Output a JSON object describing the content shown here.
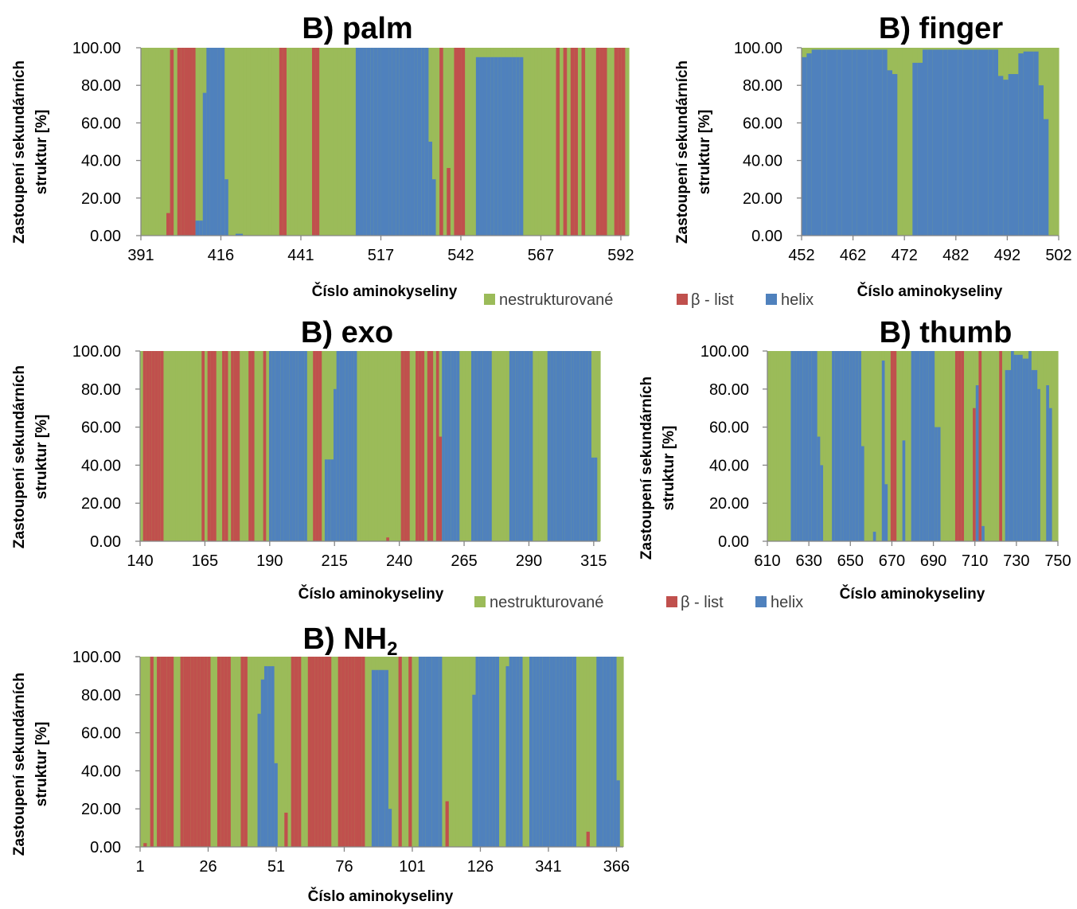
{
  "colors": {
    "nestrukturovane": "#9BBB59",
    "beta_list": "#C0504D",
    "helix": "#4F81BD",
    "axis": "#868686",
    "text": "#000000"
  },
  "common": {
    "xlabel": "Číslo aminokyseliny",
    "ylabel_line1": "Zastoupení sekundárních",
    "ylabel_line2": "struktur [%]",
    "y_ticks": [
      "0.00",
      "20.00",
      "40.00",
      "60.00",
      "80.00",
      "100.00"
    ],
    "legend": [
      "nestrukturované",
      "β - list",
      "helix"
    ]
  },
  "chart_data": [
    {
      "id": "palm",
      "type": "stacked-bar",
      "title": "B) palm",
      "ylim": [
        0,
        100
      ],
      "x_ticks": [
        "391",
        "416",
        "441",
        "517",
        "542",
        "567",
        "592"
      ],
      "series": [
        {
          "name": "nestrukturované",
          "color": "#9BBB59"
        },
        {
          "name": "β - list",
          "color": "#C0504D"
        },
        {
          "name": "helix",
          "color": "#4F81BD"
        }
      ],
      "segments": [
        {
          "n": 7,
          "s": "coil"
        },
        {
          "n": 1,
          "s": "sheet",
          "v": 12
        },
        {
          "n": 1,
          "s": "sheet",
          "v": 99
        },
        {
          "n": 1,
          "s": "coil"
        },
        {
          "n": 5,
          "s": "sheet"
        },
        {
          "n": 2,
          "s": "helix",
          "v": 8
        },
        {
          "n": 1,
          "s": "helix",
          "v": 76
        },
        {
          "n": 5,
          "s": "helix"
        },
        {
          "n": 1,
          "s": "helix",
          "v": 30
        },
        {
          "n": 2,
          "s": "coil"
        },
        {
          "n": 2,
          "s": "helix",
          "v": 1
        },
        {
          "n": 10,
          "s": "coil"
        },
        {
          "n": 2,
          "s": "sheet"
        },
        {
          "n": 7,
          "s": "coil"
        },
        {
          "n": 2,
          "s": "sheet"
        },
        {
          "n": 10,
          "s": "coil"
        },
        {
          "n": 20,
          "s": "helix"
        },
        {
          "n": 1,
          "s": "helix",
          "v": 50
        },
        {
          "n": 1,
          "s": "helix",
          "v": 30
        },
        {
          "n": 1,
          "s": "coil"
        },
        {
          "n": 1,
          "s": "sheet"
        },
        {
          "n": 1,
          "s": "coil"
        },
        {
          "n": 1,
          "s": "sheet",
          "v": 36
        },
        {
          "n": 1,
          "s": "coil"
        },
        {
          "n": 3,
          "s": "sheet"
        },
        {
          "n": 3,
          "s": "coil"
        },
        {
          "n": 13,
          "s": "helix",
          "v": 95
        },
        {
          "n": 9,
          "s": "coil"
        },
        {
          "n": 1,
          "s": "sheet"
        },
        {
          "n": 1,
          "s": "coil"
        },
        {
          "n": 1,
          "s": "sheet"
        },
        {
          "n": 1,
          "s": "coil"
        },
        {
          "n": 2,
          "s": "sheet"
        },
        {
          "n": 1,
          "s": "coil"
        },
        {
          "n": 1,
          "s": "sheet"
        },
        {
          "n": 3,
          "s": "coil"
        },
        {
          "n": 3,
          "s": "sheet"
        },
        {
          "n": 2,
          "s": "coil"
        },
        {
          "n": 3,
          "s": "sheet"
        },
        {
          "n": 1,
          "s": "coil"
        }
      ]
    },
    {
      "id": "finger",
      "type": "stacked-bar",
      "title": "B) finger",
      "ylim": [
        0,
        100
      ],
      "x_ticks": [
        "452",
        "462",
        "472",
        "482",
        "492",
        "502"
      ],
      "series": [
        {
          "name": "nestrukturované",
          "color": "#9BBB59"
        },
        {
          "name": "β - list",
          "color": "#C0504D"
        },
        {
          "name": "helix",
          "color": "#4F81BD"
        }
      ],
      "segments": [
        {
          "n": 1,
          "s": "helix",
          "v": 95
        },
        {
          "n": 1,
          "s": "helix",
          "v": 97
        },
        {
          "n": 15,
          "s": "helix",
          "v": 99
        },
        {
          "n": 1,
          "s": "helix",
          "v": 88
        },
        {
          "n": 1,
          "s": "helix",
          "v": 86
        },
        {
          "n": 3,
          "s": "coil"
        },
        {
          "n": 2,
          "s": "helix",
          "v": 92
        },
        {
          "n": 15,
          "s": "helix",
          "v": 99
        },
        {
          "n": 1,
          "s": "helix",
          "v": 85
        },
        {
          "n": 1,
          "s": "helix",
          "v": 83
        },
        {
          "n": 2,
          "s": "helix",
          "v": 86
        },
        {
          "n": 1,
          "s": "helix",
          "v": 97
        },
        {
          "n": 3,
          "s": "helix",
          "v": 98
        },
        {
          "n": 1,
          "s": "helix",
          "v": 80
        },
        {
          "n": 1,
          "s": "helix",
          "v": 62
        },
        {
          "n": 2,
          "s": "coil"
        }
      ]
    },
    {
      "id": "exo",
      "type": "stacked-bar",
      "title": "B) exo",
      "ylim": [
        0,
        100
      ],
      "x_ticks": [
        "140",
        "165",
        "190",
        "215",
        "240",
        "265",
        "290",
        "315"
      ],
      "series": [
        {
          "name": "nestrukturované",
          "color": "#9BBB59"
        },
        {
          "name": "β - list",
          "color": "#C0504D"
        },
        {
          "name": "helix",
          "color": "#4F81BD"
        }
      ],
      "segments": [
        {
          "n": 1,
          "s": "coil"
        },
        {
          "n": 7,
          "s": "sheet"
        },
        {
          "n": 13,
          "s": "coil"
        },
        {
          "n": 1,
          "s": "sheet"
        },
        {
          "n": 1,
          "s": "coil"
        },
        {
          "n": 3,
          "s": "sheet"
        },
        {
          "n": 2,
          "s": "coil",
          "v": 67
        },
        {
          "n": 2,
          "s": "sheet"
        },
        {
          "n": 1,
          "s": "coil"
        },
        {
          "n": 3,
          "s": "sheet"
        },
        {
          "n": 3,
          "s": "coil"
        },
        {
          "n": 2,
          "s": "sheet"
        },
        {
          "n": 3,
          "s": "coil"
        },
        {
          "n": 1,
          "s": "sheet"
        },
        {
          "n": 1,
          "s": "coil"
        },
        {
          "n": 13,
          "s": "helix"
        },
        {
          "n": 2,
          "s": "coil"
        },
        {
          "n": 3,
          "s": "sheet"
        },
        {
          "n": 1,
          "s": "coil"
        },
        {
          "n": 3,
          "s": "helix",
          "v": 43
        },
        {
          "n": 1,
          "s": "helix",
          "v": 80
        },
        {
          "n": 7,
          "s": "helix"
        },
        {
          "n": 10,
          "s": "coil"
        },
        {
          "n": 1,
          "s": "sheet",
          "v": 2
        },
        {
          "n": 4,
          "s": "coil"
        },
        {
          "n": 3,
          "s": "sheet"
        },
        {
          "n": 1,
          "s": "coil",
          "v": 55
        },
        {
          "n": 1,
          "s": "coil"
        },
        {
          "n": 3,
          "s": "sheet"
        },
        {
          "n": 1,
          "s": "coil"
        },
        {
          "n": 2,
          "s": "sheet"
        },
        {
          "n": 1,
          "s": "coil"
        },
        {
          "n": 1,
          "s": "sheet"
        },
        {
          "n": 1,
          "s": "sheet",
          "v": 55
        },
        {
          "n": 6,
          "s": "helix"
        },
        {
          "n": 4,
          "s": "coil"
        },
        {
          "n": 7,
          "s": "helix"
        },
        {
          "n": 6,
          "s": "coil"
        },
        {
          "n": 8,
          "s": "helix"
        },
        {
          "n": 5,
          "s": "coil"
        },
        {
          "n": 15,
          "s": "helix"
        },
        {
          "n": 2,
          "s": "helix",
          "v": 44
        },
        {
          "n": 1,
          "s": "coil"
        }
      ]
    },
    {
      "id": "thumb",
      "type": "stacked-bar",
      "title": "B) thumb",
      "ylim": [
        0,
        100
      ],
      "x_ticks": [
        "610",
        "630",
        "650",
        "670",
        "690",
        "710",
        "730",
        "750"
      ],
      "series": [
        {
          "name": "nestrukturované",
          "color": "#9BBB59"
        },
        {
          "name": "β - list",
          "color": "#C0504D"
        },
        {
          "name": "helix",
          "color": "#4F81BD"
        }
      ],
      "segments": [
        {
          "n": 8,
          "s": "coil"
        },
        {
          "n": 9,
          "s": "helix"
        },
        {
          "n": 1,
          "s": "helix",
          "v": 55
        },
        {
          "n": 1,
          "s": "helix",
          "v": 40
        },
        {
          "n": 3,
          "s": "coil"
        },
        {
          "n": 10,
          "s": "helix"
        },
        {
          "n": 1,
          "s": "helix",
          "v": 50
        },
        {
          "n": 3,
          "s": "coil"
        },
        {
          "n": 1,
          "s": "helix",
          "v": 5
        },
        {
          "n": 2,
          "s": "coil"
        },
        {
          "n": 1,
          "s": "helix",
          "v": 95
        },
        {
          "n": 1,
          "s": "helix",
          "v": 30
        },
        {
          "n": 1,
          "s": "coil"
        },
        {
          "n": 2,
          "s": "sheet"
        },
        {
          "n": 2,
          "s": "coil"
        },
        {
          "n": 1,
          "s": "helix",
          "v": 53
        },
        {
          "n": 2,
          "s": "coil"
        },
        {
          "n": 8,
          "s": "helix"
        },
        {
          "n": 2,
          "s": "helix",
          "v": 60
        },
        {
          "n": 5,
          "s": "coil"
        },
        {
          "n": 3,
          "s": "sheet"
        },
        {
          "n": 3,
          "s": "coil"
        },
        {
          "n": 1,
          "s": "sheet",
          "v": 70
        },
        {
          "n": 1,
          "s": "helix",
          "v": 82
        },
        {
          "n": 1,
          "s": "sheet"
        },
        {
          "n": 1,
          "s": "helix",
          "v": 8
        },
        {
          "n": 5,
          "s": "coil"
        },
        {
          "n": 1,
          "s": "sheet"
        },
        {
          "n": 1,
          "s": "coil"
        },
        {
          "n": 2,
          "s": "helix",
          "v": 90
        },
        {
          "n": 1,
          "s": "helix",
          "v": 100
        },
        {
          "n": 3,
          "s": "helix",
          "v": 98
        },
        {
          "n": 2,
          "s": "helix",
          "v": 96
        },
        {
          "n": 1,
          "s": "helix",
          "v": 100
        },
        {
          "n": 2,
          "s": "helix",
          "v": 90
        },
        {
          "n": 1,
          "s": "helix",
          "v": 80
        },
        {
          "n": 2,
          "s": "coil"
        },
        {
          "n": 1,
          "s": "helix",
          "v": 82
        },
        {
          "n": 1,
          "s": "helix",
          "v": 70
        },
        {
          "n": 2,
          "s": "coil"
        }
      ]
    },
    {
      "id": "nh2",
      "type": "stacked-bar",
      "title": "B) NH",
      "title_sub": "2",
      "ylim": [
        0,
        100
      ],
      "x_ticks": [
        "1",
        "26",
        "51",
        "76",
        "101",
        "126",
        "341",
        "366"
      ],
      "series": [
        {
          "name": "nestrukturované",
          "color": "#9BBB59"
        },
        {
          "name": "β - list",
          "color": "#C0504D"
        },
        {
          "name": "helix",
          "color": "#4F81BD"
        }
      ],
      "segments": [
        {
          "n": 1,
          "s": "coil"
        },
        {
          "n": 1,
          "s": "sheet",
          "v": 2
        },
        {
          "n": 1,
          "s": "coil"
        },
        {
          "n": 1,
          "s": "sheet"
        },
        {
          "n": 1,
          "s": "coil"
        },
        {
          "n": 5,
          "s": "sheet"
        },
        {
          "n": 2,
          "s": "coil"
        },
        {
          "n": 9,
          "s": "sheet"
        },
        {
          "n": 2,
          "s": "coil"
        },
        {
          "n": 4,
          "s": "sheet"
        },
        {
          "n": 3,
          "s": "coil"
        },
        {
          "n": 2,
          "s": "sheet"
        },
        {
          "n": 3,
          "s": "coil"
        },
        {
          "n": 1,
          "s": "helix",
          "v": 70
        },
        {
          "n": 1,
          "s": "helix",
          "v": 88
        },
        {
          "n": 3,
          "s": "helix",
          "v": 95
        },
        {
          "n": 1,
          "s": "helix",
          "v": 44
        },
        {
          "n": 2,
          "s": "coil"
        },
        {
          "n": 1,
          "s": "sheet",
          "v": 18
        },
        {
          "n": 1,
          "s": "coil"
        },
        {
          "n": 3,
          "s": "sheet"
        },
        {
          "n": 2,
          "s": "coil"
        },
        {
          "n": 7,
          "s": "sheet"
        },
        {
          "n": 2,
          "s": "coil"
        },
        {
          "n": 8,
          "s": "sheet"
        },
        {
          "n": 2,
          "s": "coil"
        },
        {
          "n": 5,
          "s": "helix",
          "v": 93
        },
        {
          "n": 1,
          "s": "helix",
          "v": 20
        },
        {
          "n": 2,
          "s": "coil"
        },
        {
          "n": 1,
          "s": "sheet"
        },
        {
          "n": 2,
          "s": "coil"
        },
        {
          "n": 1,
          "s": "sheet"
        },
        {
          "n": 2,
          "s": "coil"
        },
        {
          "n": 7,
          "s": "helix"
        },
        {
          "n": 1,
          "s": "coil"
        },
        {
          "n": 1,
          "s": "sheet",
          "v": 24
        },
        {
          "n": 7,
          "s": "coil"
        },
        {
          "n": 1,
          "s": "helix",
          "v": 80
        },
        {
          "n": 7,
          "s": "helix"
        },
        {
          "n": 2,
          "s": "coil"
        },
        {
          "n": 1,
          "s": "helix",
          "v": 95
        },
        {
          "n": 4,
          "s": "helix"
        },
        {
          "n": 2,
          "s": "coil"
        },
        {
          "n": 14,
          "s": "helix"
        },
        {
          "n": 3,
          "s": "coil"
        },
        {
          "n": 1,
          "s": "sheet",
          "v": 8
        },
        {
          "n": 2,
          "s": "coil"
        },
        {
          "n": 6,
          "s": "helix"
        },
        {
          "n": 1,
          "s": "helix",
          "v": 35
        },
        {
          "n": 1,
          "s": "coil"
        }
      ]
    }
  ]
}
